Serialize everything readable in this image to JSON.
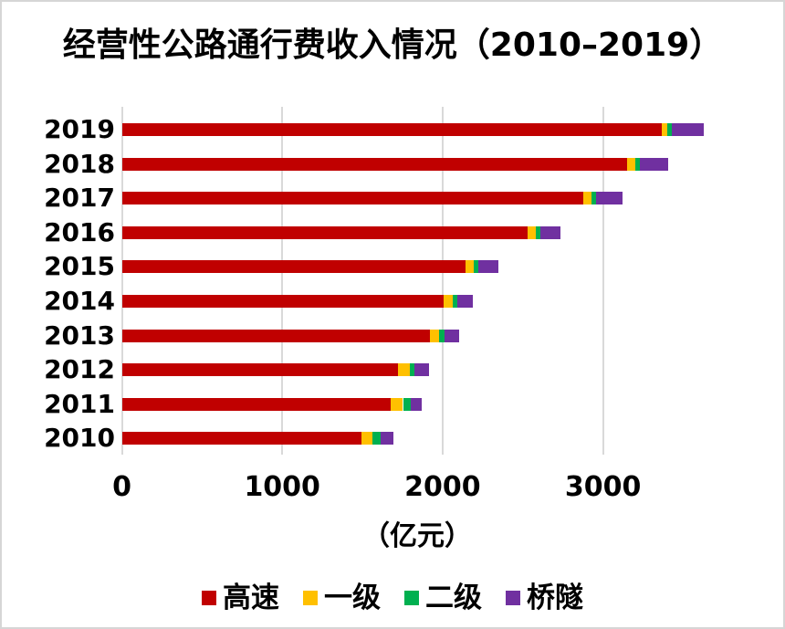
{
  "title": "经营性公路通行费收入情况（2010–2019）",
  "chart_data": {
    "type": "bar",
    "orientation": "horizontal-stacked",
    "title": "经营性公路通行费收入情况（2010–2019）",
    "categories": [
      "2019",
      "2018",
      "2017",
      "2016",
      "2015",
      "2014",
      "2013",
      "2012",
      "2011",
      "2010"
    ],
    "series": [
      {
        "name": "高速",
        "color": "#C00000",
        "values": [
          3368,
          3151,
          2877,
          2530,
          2145,
          2008,
          1921,
          1723,
          1678,
          1495
        ]
      },
      {
        "name": "一级",
        "color": "#FFC000",
        "values": [
          34,
          50,
          51,
          51,
          47,
          54,
          58,
          71,
          75,
          67
        ]
      },
      {
        "name": "二级",
        "color": "#00B050",
        "values": [
          27,
          29,
          29,
          27,
          30,
          28,
          33,
          32,
          48,
          50
        ]
      },
      {
        "name": "桥隧",
        "color": "#7030A0",
        "values": [
          198,
          176,
          165,
          128,
          125,
          98,
          89,
          87,
          67,
          80
        ]
      }
    ],
    "totals": [
      3627,
      3406,
      3122,
      2736,
      2347,
      2188,
      2101,
      1913,
      1868,
      1692
    ],
    "xlabel": "（亿元）",
    "xticks": [
      0,
      1000,
      2000,
      3000
    ],
    "xtick_labels": [
      "0",
      "1000",
      "2000",
      "3000"
    ],
    "xlim": [
      0,
      4060
    ],
    "grid": "vertical-gridlines",
    "gridline_color": "#D9D9D9",
    "legend_position": "bottom",
    "text_color": "#000000",
    "background_color": "#FFFFFF"
  }
}
